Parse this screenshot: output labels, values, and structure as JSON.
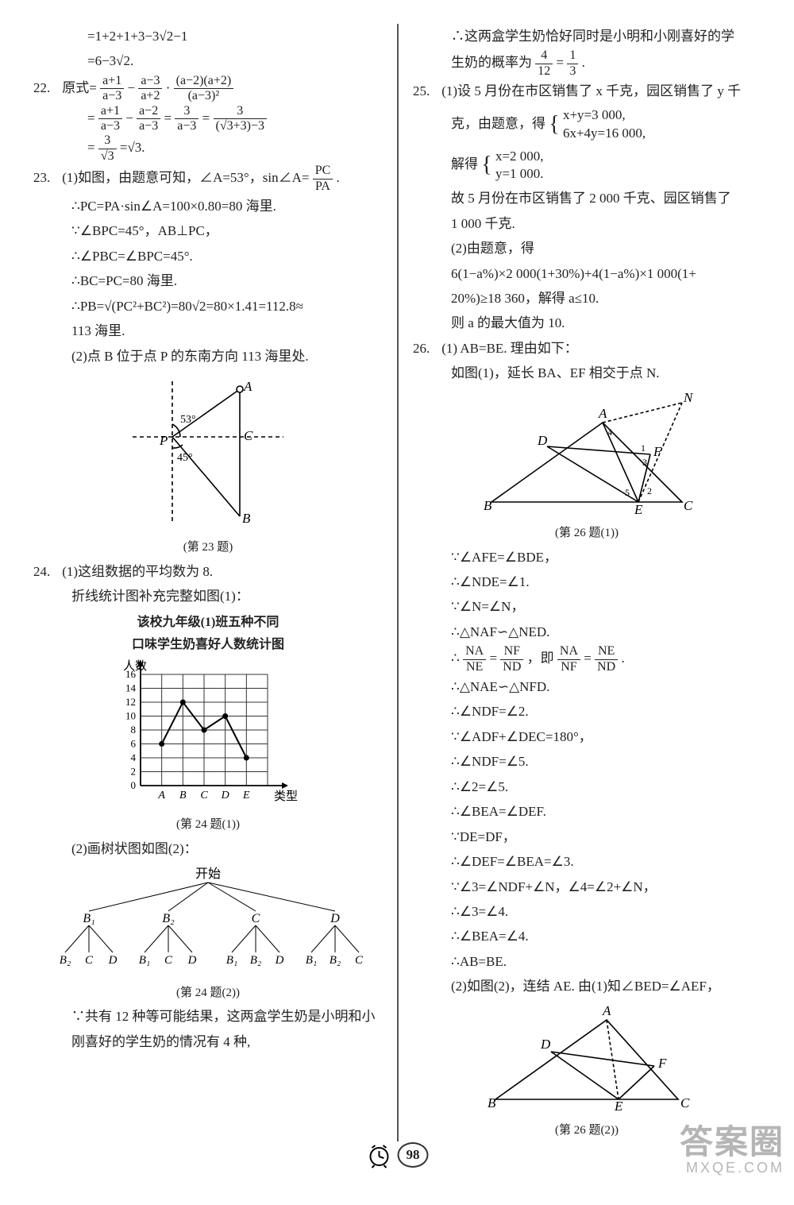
{
  "left": {
    "l21a": "=1+2+1+3−3√2−1",
    "l21b": "=6−3√2.",
    "q22": "22.",
    "l22a": "原式=",
    "f22a_n": "a+1",
    "f22a_d": "a−3",
    "l22a2": "−",
    "f22b_n": "a−3",
    "f22b_d": "a+2",
    "l22a3": "·",
    "f22c_n": "(a−2)(a+2)",
    "f22c_d": "(a−3)²",
    "l22b1": "=",
    "f22d_n": "a+1",
    "f22d_d": "a−3",
    "l22b2": "−",
    "f22e_n": "a−2",
    "f22e_d": "a−3",
    "l22b3": "=",
    "f22f_n": "3",
    "f22f_d": "a−3",
    "l22b4": "=",
    "f22g_n": "3",
    "f22g_d": "(√3+3)−3",
    "l22c1": "=",
    "f22h_n": "3",
    "f22h_d": "√3",
    "l22c2": "=√3.",
    "q23": "23.",
    "l23a1": "(1)如图，由题意可知，∠A=53°，sin∠A=",
    "f23a_n": "PC",
    "f23a_d": "PA",
    "l23a2": ".",
    "l23b": "∴PC=PA·sin∠A=100×0.80=80 海里.",
    "l23c": "∵∠BPC=45°，AB⊥PC，",
    "l23d": "∴∠PBC=∠BPC=45°.",
    "l23e": "∴BC=PC=80 海里.",
    "l23f": "∴PB=√(PC²+BC²)=80√2=80×1.41=112.8≈",
    "l23g": "113 海里.",
    "l23h": "(2)点 B 位于点 P 的东南方向 113 海里处.",
    "fig23_cap": "(第 23 题)",
    "q24": "24.",
    "l24a": "(1)这组数据的平均数为 8.",
    "l24b": "折线统计图补充完整如图(1)：",
    "chart_title1": "该校九年级(1)班五种不同",
    "chart_title2": "口味学生奶喜好人数统计图",
    "chart": {
      "ylabel": "人数",
      "xlabel": "类型",
      "categories": [
        "A",
        "B",
        "C",
        "D",
        "E"
      ],
      "values": [
        6,
        12,
        8,
        10,
        4
      ],
      "yticks": [
        0,
        2,
        4,
        6,
        8,
        10,
        12,
        14,
        16
      ],
      "ylim": [
        0,
        16
      ],
      "grid_color": "#333",
      "line_color": "#000",
      "bg": "#ffffff"
    },
    "fig24a_cap": "(第 24 题(1))",
    "l24c": "(2)画树状图如图(2)：",
    "tree": {
      "root": "开始",
      "level1": [
        "B₁",
        "B₂",
        "C",
        "D"
      ],
      "level2": [
        [
          "B₂",
          "C",
          "D"
        ],
        [
          "B₁",
          "C",
          "D"
        ],
        [
          "B₁",
          "B₂",
          "D"
        ],
        [
          "B₁",
          "B₂",
          "C"
        ]
      ]
    },
    "fig24b_cap": "(第 24 题(2))",
    "l24d": "∵共有 12 种等可能结果，这两盒学生奶是小明和小",
    "l24e": "刚喜好的学生奶的情况有 4 种,"
  },
  "right": {
    "r24a": "∴这两盒学生奶恰好同时是小明和小刚喜好的学",
    "r24b1": "生奶的概率为",
    "f24_n": "4",
    "f24_d": "12",
    "r24b2": "=",
    "f24b_n": "1",
    "f24b_d": "3",
    "r24b3": ".",
    "q25": "25.",
    "l25a": "(1)设 5 月份在市区销售了 x 千克，园区销售了 y 千",
    "l25b1": "克，由题意，得",
    "sys25a": "x+y=3 000,",
    "sys25b": "6x+4y=16 000,",
    "l25c1": "解得",
    "sys25c": "x=2 000,",
    "sys25d": "y=1 000.",
    "l25d": "故 5 月份在市区销售了 2 000 千克、园区销售了",
    "l25e": "1 000 千克.",
    "l25f": "(2)由题意，得",
    "l25g": "6(1−a%)×2 000(1+30%)+4(1−a%)×1 000(1+",
    "l25h": "20%)≥18 360，解得 a≤10.",
    "l25i": "则 a 的最大值为 10.",
    "q26": "26.",
    "l26a": "(1) AB=BE. 理由如下：",
    "l26b": "如图(1)，延长 BA、EF 相交于点 N.",
    "fig26a_cap": "(第 26 题(1))",
    "l26c": "∵∠AFE=∠BDE，",
    "l26d": "∴∠NDE=∠1.",
    "l26e": "∵∠N=∠N，",
    "l26f": "∴△NAF∽△NED.",
    "l26g1": "∴",
    "f26a_n": "NA",
    "f26a_d": "NE",
    "l26g2": "=",
    "f26b_n": "NF",
    "f26b_d": "ND",
    "l26g3": "，即",
    "f26c_n": "NA",
    "f26c_d": "NF",
    "l26g4": "=",
    "f26d_n": "NE",
    "f26d_d": "ND",
    "l26g5": ".",
    "l26h": "∴△NAE∽△NFD.",
    "l26i": "∴∠NDF=∠2.",
    "l26j": "∵∠ADF+∠DEC=180°，",
    "l26k": "∴∠NDF=∠5.",
    "l26l": "∴∠2=∠5.",
    "l26m": "∴∠BEA=∠DEF.",
    "l26n": "∵DE=DF，",
    "l26o": "∴∠DEF=∠BEA=∠3.",
    "l26p": "∵∠3=∠NDF+∠N，∠4=∠2+∠N，",
    "l26q": "∴∠3=∠4.",
    "l26r": "∴∠BEA=∠4.",
    "l26s": "∴AB=BE.",
    "l26t": "(2)如图(2)，连结 AE. 由(1)知∠BED=∠AEF，",
    "fig26b_cap": "(第 26 题(2))"
  },
  "page_number": "98",
  "watermark_big": "答案圈",
  "watermark_sm": "MXQE.COM",
  "colors": {
    "text": "#222222",
    "bg": "#ffffff",
    "line": "#333333"
  }
}
